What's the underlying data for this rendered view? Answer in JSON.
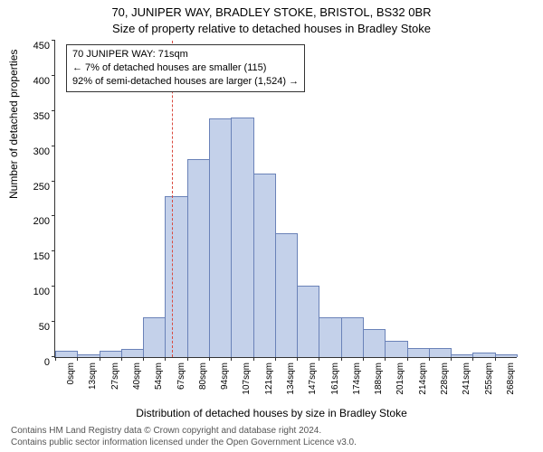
{
  "title_line1": "70, JUNIPER WAY, BRADLEY STOKE, BRISTOL, BS32 0BR",
  "title_line2": "Size of property relative to detached houses in Bradley Stoke",
  "y_axis_label": "Number of detached properties",
  "x_axis_label": "Distribution of detached houses by size in Bradley Stoke",
  "footer_line1": "Contains HM Land Registry data © Crown copyright and database right 2024.",
  "footer_line2": "Contains public sector information licensed under the Open Government Licence v3.0.",
  "chart": {
    "type": "histogram",
    "ylim": [
      0,
      450
    ],
    "ytick_step": 50,
    "xtick_labels": [
      "0sqm",
      "13sqm",
      "27sqm",
      "40sqm",
      "54sqm",
      "67sqm",
      "80sqm",
      "94sqm",
      "107sqm",
      "121sqm",
      "134sqm",
      "147sqm",
      "161sqm",
      "174sqm",
      "188sqm",
      "201sqm",
      "214sqm",
      "228sqm",
      "241sqm",
      "255sqm",
      "268sqm"
    ],
    "values": [
      8,
      3,
      8,
      10,
      55,
      228,
      280,
      338,
      340,
      260,
      175,
      100,
      55,
      55,
      38,
      22,
      12,
      12,
      3,
      5,
      3
    ],
    "bar_fill": "#c4d1ea",
    "bar_stroke": "#6a82b8",
    "background_color": "#ffffff",
    "axis_color": "#333333",
    "tick_font_size": 11,
    "reference_line": {
      "value_sqm": 71,
      "color": "#d94a3f",
      "dash": "1px dashed"
    },
    "info_box": {
      "line1": "70 JUNIPER WAY: 71sqm",
      "line2": "← 7% of detached houses are smaller (115)",
      "line3": "92% of semi-detached houses are larger (1,524) →"
    }
  }
}
